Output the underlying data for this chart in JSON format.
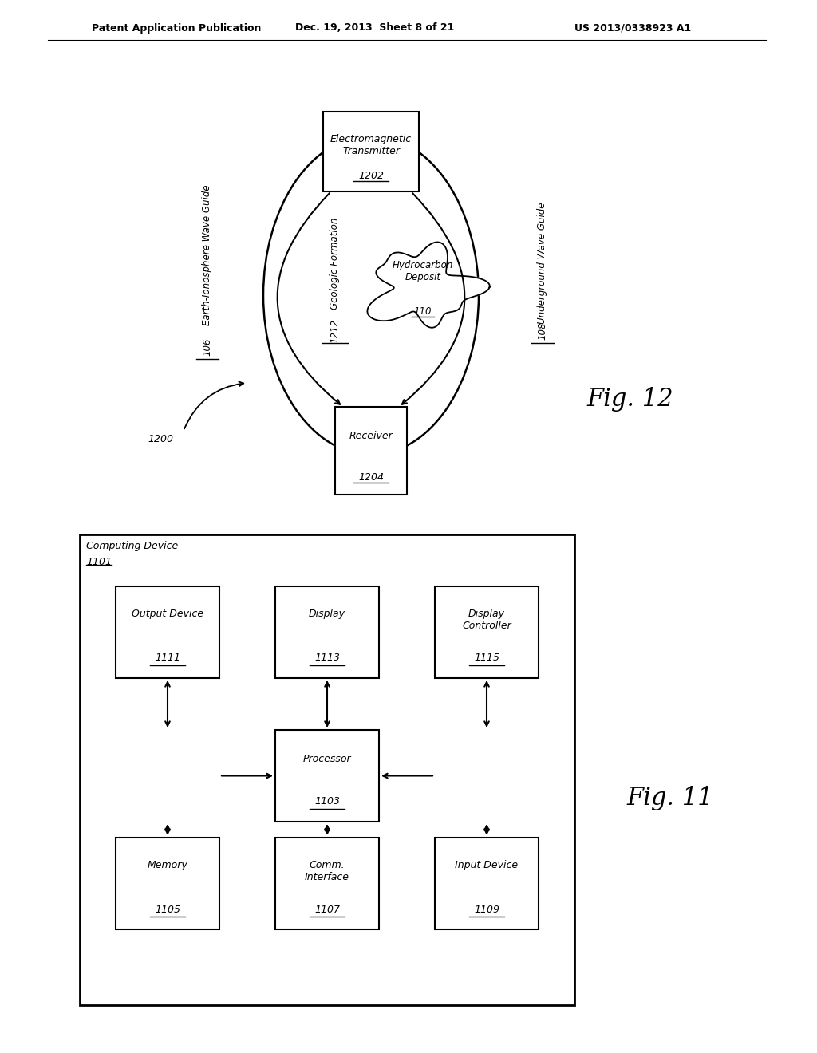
{
  "bg_color": "#ffffff",
  "header_left": "Patent Application Publication",
  "header_mid": "Dec. 19, 2013  Sheet 8 of 21",
  "header_right": "US 2013/0338923 A1",
  "fig12_label": "Fig. 12",
  "fig11_label": "Fig. 11",
  "fig12_number": "1200",
  "transmitter_label": "Electromagnetic\nTransmitter",
  "transmitter_num": "1202",
  "receiver_label": "Receiver",
  "receiver_num": "1204",
  "geo_form_label": "Geologic Formation",
  "geo_form_num": "1212",
  "hydro_label": "Hydrocarbon\nDeposit",
  "hydro_num": "110",
  "earth_label": "Earth-Ionosphere Wave Guide",
  "earth_num": "106",
  "underground_label": "Underground Wave Guide",
  "underground_num": "108",
  "computing_label": "Computing Device",
  "computing_num": "1101",
  "output_device_label": "Output Device",
  "output_device_num": "1111",
  "display_label": "Display",
  "display_num": "1113",
  "display_ctrl_label": "Display\nController",
  "display_ctrl_num": "1115",
  "processor_label": "Processor",
  "processor_num": "1103",
  "memory_label": "Memory",
  "memory_num": "1105",
  "comm_label": "Comm.\nInterface",
  "comm_num": "1107",
  "input_label": "Input Device",
  "input_num": "1109"
}
